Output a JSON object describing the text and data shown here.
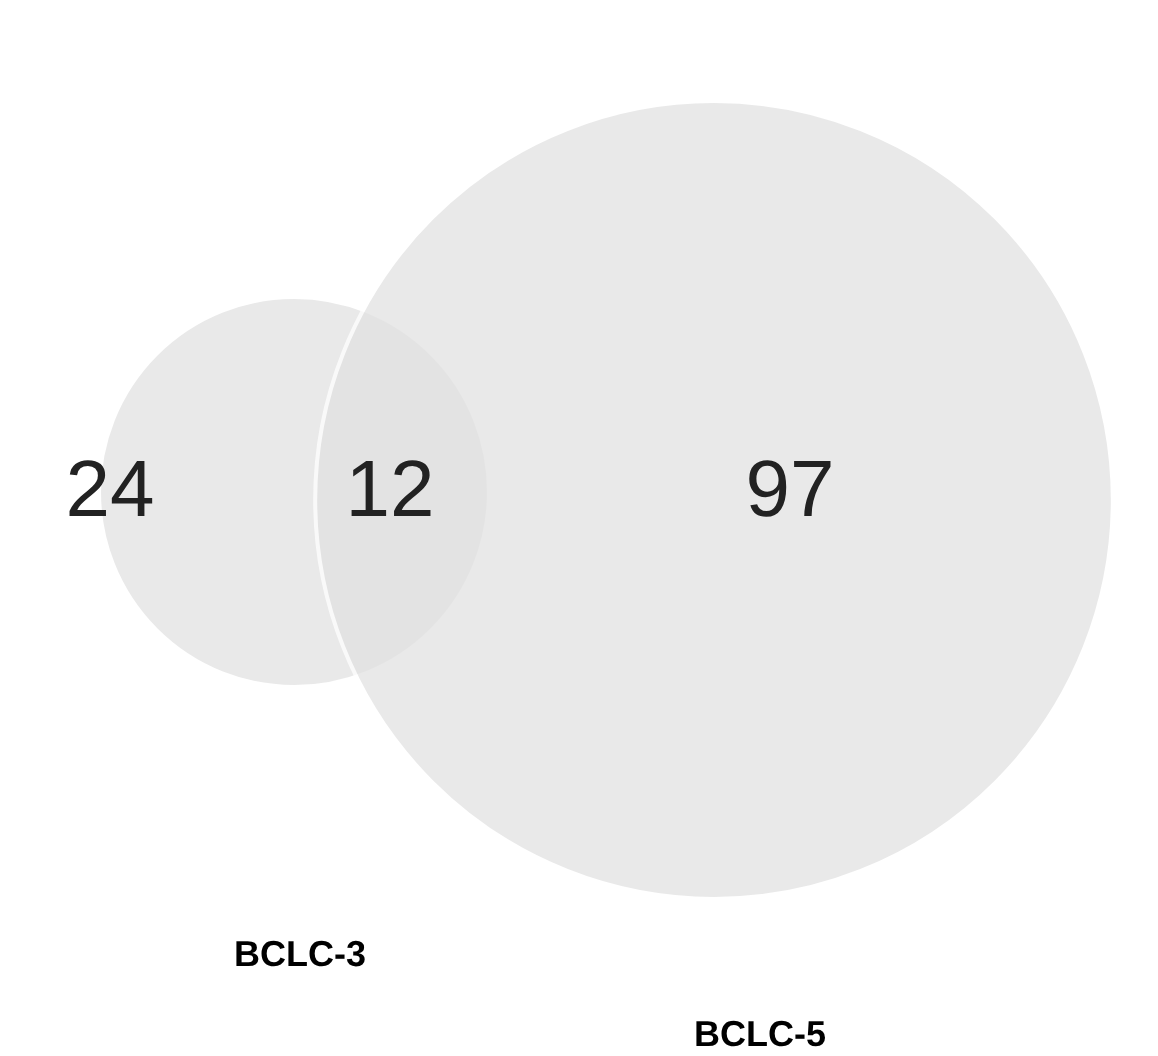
{
  "chart_data": {
    "type": "other",
    "categories": [
      null,
      null,
      null
    ],
    "values": [
      24,
      12,
      97
    ],
    "data_labels": true,
    "color": "#e2e2e2",
    "annotations": [
      "BCLC-3",
      "BCLC-5"
    ]
  }
}
